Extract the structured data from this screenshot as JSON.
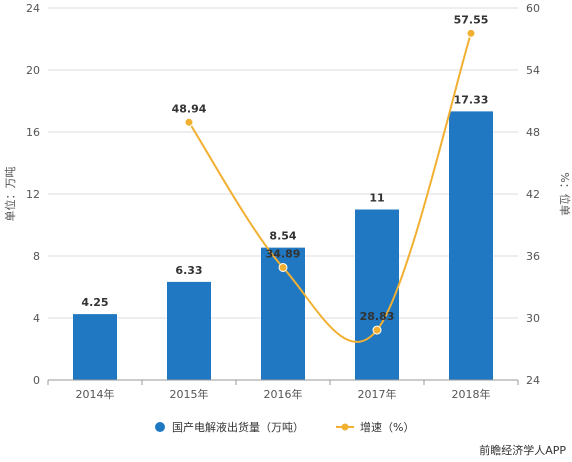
{
  "chart_data": {
    "type": "bar+line",
    "categories": [
      "2014年",
      "2015年",
      "2016年",
      "2017年",
      "2018年"
    ],
    "series": [
      {
        "name": "国产电解液出货量（万吨）",
        "type": "bar",
        "axis": "left",
        "color": "#1f78c1",
        "values": [
          4.25,
          6.33,
          8.54,
          11,
          17.33
        ],
        "labels": [
          "4.25",
          "6.33",
          "8.54",
          "11",
          "17.33"
        ]
      },
      {
        "name": "增速（%）",
        "type": "line",
        "axis": "right",
        "color": "#f2b033",
        "values": [
          null,
          48.94,
          34.89,
          28.83,
          57.55
        ],
        "labels": [
          "",
          "48.94",
          "34.89",
          "28.83",
          "57.55"
        ]
      }
    ],
    "y_left": {
      "label": "单位：万吨",
      "range": [
        0,
        24
      ],
      "ticks": [
        "0",
        "4",
        "8",
        "12",
        "16",
        "20",
        "24"
      ]
    },
    "y_right": {
      "label": "%：位单",
      "range": [
        24,
        60
      ],
      "ticks": [
        "24",
        "30",
        "36",
        "42",
        "48",
        "54",
        "60"
      ]
    },
    "grid": true,
    "legend": "bottom"
  },
  "footer": "前瞻经济学人APP"
}
